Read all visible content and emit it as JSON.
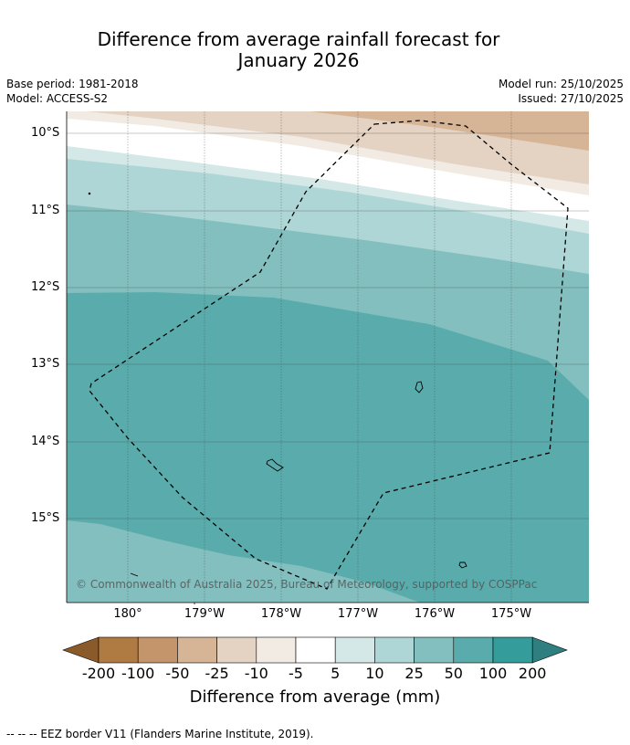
{
  "title_line1": "Difference from average rainfall forecast for",
  "title_line2": "January 2026",
  "base_period": "Base period: 1981-2018",
  "model": "Model: ACCESS-S2",
  "model_run": "Model run: 25/10/2025",
  "issued": "Issued: 27/10/2025",
  "lat_labels": [
    "10°S",
    "11°S",
    "12°S",
    "13°S",
    "14°S",
    "15°S"
  ],
  "lon_labels": [
    "180°",
    "179°W",
    "178°W",
    "177°W",
    "176°W",
    "175°W"
  ],
  "copyright": "© Commonwealth of Australia 2025, Bureau of Meteorology, supported by COSPPac",
  "colorbar": {
    "labels": [
      "-200",
      "-100",
      "-50",
      "-25",
      "-10",
      "-5",
      "5",
      "10",
      "25",
      "50",
      "100",
      "200"
    ],
    "colors": [
      "#8b5a2b",
      "#b07b43",
      "#c4956a",
      "#d6b496",
      "#e4d2c2",
      "#f1ebe4",
      "#ffffff",
      "#d3e8e7",
      "#afd6d6",
      "#84bfbf",
      "#5aacac",
      "#349c9a",
      "#2f7f80"
    ],
    "title": "Difference from average (mm)"
  },
  "legend_note": "--  --  -- EEZ border V11 (Flanders Marine Institute, 2019)."
}
